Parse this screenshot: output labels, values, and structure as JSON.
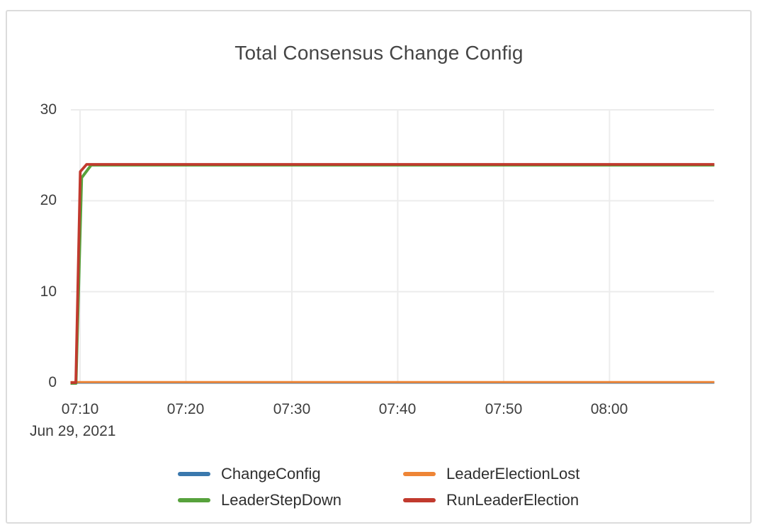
{
  "chart_data": {
    "type": "line",
    "title": "Total Consensus Change Config",
    "x_axis": {
      "date_label": "Jun 29, 2021",
      "tick_labels": [
        "07:10",
        "07:20",
        "07:30",
        "07:40",
        "07:50",
        "08:00"
      ],
      "tick_minutes": [
        10,
        20,
        30,
        40,
        50,
        60
      ],
      "range_minutes": [
        9.1,
        69.9
      ]
    },
    "y_axis": {
      "tick_labels": [
        "30",
        "20",
        "10",
        "0"
      ],
      "tick_values": [
        30,
        20,
        10,
        0
      ],
      "range": [
        0,
        30
      ]
    },
    "grid": true,
    "legend_position": "bottom",
    "axis_color": "#3d3d3d",
    "gridline_color": "#ececec",
    "series": [
      {
        "name": "ChangeConfig",
        "color": "#3a78ad",
        "points": [
          [
            9.1,
            0
          ],
          [
            69.9,
            0
          ]
        ]
      },
      {
        "name": "LeaderElectionLost",
        "color": "#ee8536",
        "points": [
          [
            9.1,
            0
          ],
          [
            69.9,
            0
          ]
        ]
      },
      {
        "name": "LeaderStepDown",
        "color": "#57a23c",
        "points": [
          [
            9.1,
            0
          ],
          [
            9.62,
            0
          ],
          [
            10.15,
            22.6
          ],
          [
            11.05,
            24
          ],
          [
            69.9,
            24
          ]
        ]
      },
      {
        "name": "RunLeaderElection",
        "color": "#c13a2e",
        "points": [
          [
            9.1,
            0
          ],
          [
            9.6,
            0
          ],
          [
            10.02,
            23.2
          ],
          [
            10.62,
            24
          ],
          [
            69.9,
            24
          ]
        ]
      }
    ]
  }
}
